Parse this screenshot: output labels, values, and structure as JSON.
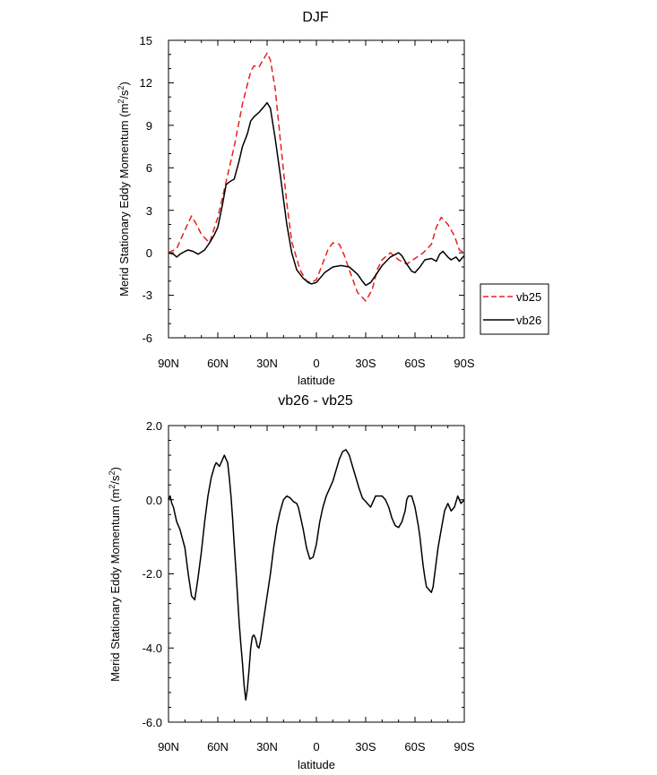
{
  "chart_data": [
    {
      "type": "line",
      "title": "DJF",
      "xlabel": "latitude",
      "ylabel_main": "Merid Stationary Eddy Momentum (m",
      "ylabel_sup1": "2",
      "ylabel_mid": "/s",
      "ylabel_sup2": "2",
      "ylabel_end": ")",
      "xlim": [
        90,
        -90
      ],
      "ylim": [
        -6,
        15
      ],
      "xticks": [
        90,
        60,
        30,
        0,
        -30,
        -60,
        -90
      ],
      "xtick_labels": [
        "90N",
        "60N",
        "30N",
        "0",
        "30S",
        "60S",
        "90S"
      ],
      "yticks": [
        -6,
        -3,
        0,
        3,
        6,
        9,
        12,
        15
      ],
      "ytick_labels": [
        "-6",
        "-3",
        "0",
        "3",
        "6",
        "9",
        "12",
        "15"
      ],
      "legend": [
        "vb25",
        "vb26"
      ],
      "series": [
        {
          "name": "vb25",
          "color": "#e8201c",
          "dash": true,
          "x": [
            90,
            85,
            80,
            76,
            73,
            70,
            65,
            60,
            55,
            50,
            45,
            40,
            38,
            35,
            32,
            30,
            28,
            25,
            22,
            18,
            15,
            10,
            6,
            3,
            0,
            -3,
            -7,
            -10,
            -14,
            -17,
            -20,
            -25,
            -30,
            -34,
            -37,
            -40,
            -45,
            -50,
            -55,
            -60,
            -65,
            -70,
            -73,
            -76,
            -80,
            -84,
            -87,
            -90
          ],
          "y": [
            0,
            0.3,
            1.6,
            2.6,
            2.0,
            1.3,
            0.7,
            2.5,
            5.0,
            7.5,
            10.5,
            12.8,
            13.2,
            13.1,
            13.7,
            14.1,
            13.6,
            11.5,
            8.0,
            3.5,
            0.8,
            -1.2,
            -2.0,
            -2.1,
            -1.9,
            -1.0,
            0.2,
            0.7,
            0.6,
            -0.2,
            -1.2,
            -2.8,
            -3.4,
            -2.6,
            -1.2,
            -0.5,
            0,
            -0.5,
            -0.8,
            -0.4,
            0,
            0.6,
            1.8,
            2.5,
            2.0,
            1.2,
            0.2,
            0
          ]
        },
        {
          "name": "vb26",
          "color": "#000000",
          "dash": false,
          "x": [
            90,
            87,
            85,
            83,
            80,
            78,
            75,
            72,
            68,
            65,
            62,
            60,
            57,
            55,
            53,
            50,
            47,
            45,
            42,
            40,
            38,
            35,
            32,
            30,
            28,
            25,
            22,
            18,
            15,
            12,
            8,
            5,
            3,
            0,
            -5,
            -10,
            -15,
            -20,
            -25,
            -28,
            -30,
            -33,
            -36,
            -40,
            -45,
            -50,
            -52,
            -55,
            -58,
            -60,
            -63,
            -66,
            -70,
            -73,
            -75,
            -77,
            -80,
            -82,
            -85,
            -87,
            -90
          ],
          "y": [
            0,
            -0.1,
            -0.3,
            -0.1,
            0.1,
            0.2,
            0.1,
            -0.1,
            0.2,
            0.7,
            1.3,
            1.8,
            3.5,
            4.8,
            5.0,
            5.2,
            6.5,
            7.5,
            8.4,
            9.3,
            9.6,
            9.9,
            10.3,
            10.6,
            10.2,
            8.0,
            5.5,
            2.0,
            0,
            -1.2,
            -1.8,
            -2.1,
            -2.2,
            -2.1,
            -1.4,
            -1.0,
            -0.9,
            -1.0,
            -1.5,
            -2.0,
            -2.3,
            -2.1,
            -1.6,
            -0.9,
            -0.3,
            0,
            -0.2,
            -0.8,
            -1.3,
            -1.4,
            -1.0,
            -0.5,
            -0.4,
            -0.6,
            -0.1,
            0.1,
            -0.3,
            -0.5,
            -0.3,
            -0.6,
            -0.2
          ]
        }
      ]
    },
    {
      "type": "line",
      "title": "vb26 - vb25",
      "xlabel": "latitude",
      "ylabel_main": "Merid Stationary Eddy Momentum (m",
      "ylabel_sup1": "2",
      "ylabel_mid": "/s",
      "ylabel_sup2": "2",
      "ylabel_end": ")",
      "xlim": [
        90,
        -90
      ],
      "ylim": [
        -6,
        2
      ],
      "xticks": [
        90,
        60,
        30,
        0,
        -30,
        -60,
        -90
      ],
      "xtick_labels": [
        "90N",
        "60N",
        "30N",
        "0",
        "30S",
        "60S",
        "90S"
      ],
      "yticks": [
        -6,
        -4,
        -2,
        0,
        2
      ],
      "ytick_labels": [
        "-6.0",
        "-4.0",
        "-2.0",
        "0.0",
        "2.0"
      ],
      "series": [
        {
          "name": "vb26 - vb25",
          "color": "#000000",
          "dash": false,
          "x": [
            90,
            89,
            88,
            87,
            86,
            85,
            83,
            80,
            78,
            76,
            74,
            72,
            70,
            68,
            66,
            64,
            62,
            61,
            60,
            59,
            58,
            57,
            56,
            54,
            53,
            52,
            51,
            50,
            49,
            48,
            47,
            46,
            45,
            44,
            43,
            42,
            41,
            40,
            39,
            38,
            37,
            36,
            35,
            34,
            33,
            32,
            30,
            28,
            26,
            24,
            22,
            20,
            18,
            16,
            14,
            12,
            11,
            10,
            8,
            6,
            4,
            2,
            0,
            -2,
            -4,
            -6,
            -8,
            -10,
            -12,
            -14,
            -16,
            -18,
            -20,
            -22,
            -24,
            -26,
            -28,
            -30,
            -31,
            -32,
            -33,
            -34,
            -35,
            -36,
            -38,
            -40,
            -42,
            -44,
            -46,
            -48,
            -50,
            -52,
            -54,
            -55,
            -56,
            -58,
            -60,
            -62,
            -63,
            -64,
            -65,
            -66,
            -67,
            -68,
            -69,
            -70,
            -71,
            -72,
            -74,
            -76,
            -78,
            -80,
            -82,
            -84,
            -86,
            -87,
            -88,
            -89,
            -90
          ],
          "y": [
            0,
            0.1,
            -0.1,
            -0.2,
            -0.4,
            -0.6,
            -0.8,
            -1.3,
            -2.0,
            -2.6,
            -2.7,
            -2.1,
            -1.4,
            -0.6,
            0.1,
            0.6,
            0.9,
            1.0,
            0.95,
            0.9,
            1.0,
            1.1,
            1.2,
            1.0,
            0.6,
            0.1,
            -0.5,
            -1.2,
            -1.9,
            -2.6,
            -3.3,
            -3.9,
            -4.4,
            -5.0,
            -5.4,
            -5.1,
            -4.6,
            -4.0,
            -3.7,
            -3.65,
            -3.75,
            -3.95,
            -4.0,
            -3.8,
            -3.5,
            -3.2,
            -2.6,
            -2.0,
            -1.3,
            -0.7,
            -0.3,
            0,
            0.1,
            0.05,
            -0.05,
            -0.1,
            -0.2,
            -0.4,
            -0.8,
            -1.3,
            -1.6,
            -1.55,
            -1.2,
            -0.6,
            -0.2,
            0.1,
            0.3,
            0.5,
            0.8,
            1.1,
            1.3,
            1.35,
            1.2,
            0.9,
            0.6,
            0.3,
            0.05,
            -0.05,
            -0.1,
            -0.15,
            -0.2,
            -0.1,
            0,
            0.1,
            0.1,
            0.1,
            0,
            -0.2,
            -0.5,
            -0.7,
            -0.75,
            -0.6,
            -0.3,
            0,
            0.1,
            0.1,
            -0.2,
            -0.7,
            -1.0,
            -1.4,
            -1.8,
            -2.1,
            -2.35,
            -2.4,
            -2.45,
            -2.5,
            -2.35,
            -2.0,
            -1.3,
            -0.8,
            -0.3,
            -0.1,
            -0.3,
            -0.2,
            0.1,
            0,
            -0.1,
            -0.05,
            0
          ]
        }
      ]
    }
  ]
}
